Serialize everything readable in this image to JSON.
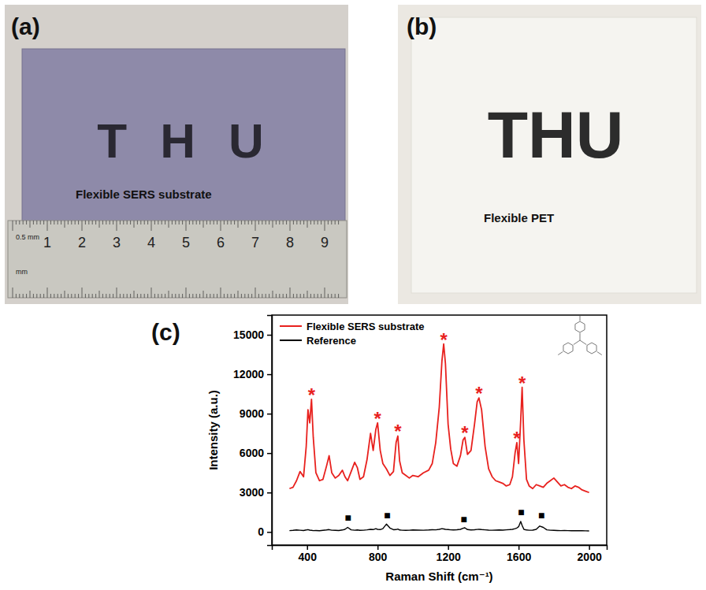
{
  "panels": [
    {
      "label": "(a)",
      "text": "THU",
      "caption": "Flexible SERS substrate",
      "ruler": {
        "numbers": [
          1,
          2,
          3,
          4,
          5,
          6,
          7,
          8,
          9
        ],
        "top_unit": "0.5 mm",
        "bottom_unit": "mm"
      }
    },
    {
      "label": "(b)",
      "text": "THU",
      "caption": "Flexible PET"
    }
  ],
  "chart_data": {
    "type": "line",
    "panel_label": "(c)",
    "x_label": "Raman Shift (cm⁻¹)",
    "y_label": "Intensity (a.u.)",
    "x": [
      300,
      320,
      340,
      360,
      380,
      395,
      405,
      415,
      425,
      435,
      450,
      470,
      490,
      510,
      525,
      540,
      560,
      580,
      600,
      615,
      630,
      650,
      670,
      685,
      700,
      720,
      740,
      760,
      775,
      790,
      800,
      815,
      830,
      850,
      870,
      890,
      905,
      915,
      925,
      940,
      960,
      980,
      1000,
      1030,
      1060,
      1090,
      1110,
      1130,
      1150,
      1165,
      1175,
      1185,
      1200,
      1215,
      1230,
      1250,
      1270,
      1285,
      1295,
      1310,
      1330,
      1350,
      1365,
      1375,
      1390,
      1410,
      1430,
      1450,
      1470,
      1490,
      1510,
      1530,
      1550,
      1565,
      1580,
      1590,
      1600,
      1612,
      1620,
      1630,
      1645,
      1660,
      1680,
      1700,
      1720,
      1740,
      1760,
      1780,
      1800,
      1820,
      1840,
      1860,
      1880,
      1900,
      1920,
      1940,
      1960,
      1980,
      2000
    ],
    "series": [
      {
        "name": "Flexible SERS substrate",
        "color": "#e8211e",
        "values": [
          3300,
          3400,
          3900,
          4600,
          4200,
          6500,
          9300,
          8300,
          10100,
          7200,
          4500,
          3900,
          4000,
          5000,
          5800,
          4500,
          4100,
          4300,
          4700,
          4200,
          3900,
          4600,
          5300,
          4900,
          4000,
          4200,
          5500,
          7500,
          6200,
          7800,
          8300,
          6200,
          5200,
          4800,
          4300,
          4600,
          6800,
          7300,
          5400,
          4500,
          4300,
          4100,
          4300,
          4200,
          4500,
          4700,
          5200,
          6800,
          9500,
          13000,
          14300,
          12800,
          8200,
          6300,
          5200,
          5000,
          5800,
          7000,
          7200,
          5900,
          6200,
          8200,
          9900,
          10200,
          9300,
          6500,
          4800,
          4200,
          3900,
          3800,
          3700,
          3500,
          3600,
          4200,
          6000,
          6800,
          5200,
          8500,
          11000,
          7000,
          4000,
          3500,
          3300,
          3600,
          3500,
          3400,
          3700,
          3900,
          4100,
          3800,
          3500,
          3600,
          3400,
          3300,
          3500,
          3400,
          3200,
          3100,
          3000
        ]
      },
      {
        "name": "Reference",
        "color": "#000000",
        "values": [
          100,
          120,
          150,
          130,
          110,
          150,
          180,
          140,
          120,
          100,
          110,
          90,
          120,
          150,
          180,
          130,
          120,
          110,
          150,
          200,
          350,
          160,
          130,
          150,
          120,
          130,
          160,
          200,
          180,
          250,
          200,
          180,
          250,
          600,
          300,
          170,
          180,
          220,
          150,
          130,
          120,
          130,
          150,
          140,
          130,
          150,
          170,
          160,
          200,
          250,
          230,
          200,
          180,
          160,
          150,
          170,
          200,
          280,
          320,
          180,
          150,
          170,
          190,
          200,
          180,
          160,
          140,
          130,
          140,
          150,
          140,
          160,
          180,
          200,
          250,
          300,
          400,
          800,
          500,
          200,
          150,
          130,
          140,
          200,
          450,
          350,
          160,
          130,
          120,
          110,
          100,
          110,
          100,
          90,
          100,
          95,
          90,
          85,
          80
        ]
      }
    ],
    "xlim": [
      200,
      2100
    ],
    "ylim": [
      -1000,
      16500
    ],
    "xticks": [
      400,
      800,
      1200,
      1600,
      2000
    ],
    "yticks": [
      0,
      3000,
      6000,
      9000,
      12000,
      15000
    ],
    "legend": "upper left",
    "annotations": [
      {
        "text": "*",
        "x": 425,
        "y": 10700,
        "color": "#e8211e"
      },
      {
        "text": "*",
        "x": 800,
        "y": 8900,
        "color": "#e8211e"
      },
      {
        "text": "*",
        "x": 915,
        "y": 7900,
        "color": "#e8211e"
      },
      {
        "text": "*",
        "x": 1175,
        "y": 14900,
        "color": "#e8211e"
      },
      {
        "text": "*",
        "x": 1295,
        "y": 7800,
        "color": "#e8211e"
      },
      {
        "text": "*",
        "x": 1375,
        "y": 10800,
        "color": "#e8211e"
      },
      {
        "text": "*",
        "x": 1590,
        "y": 7400,
        "color": "#e8211e"
      },
      {
        "text": "*",
        "x": 1620,
        "y": 11600,
        "color": "#e8211e"
      },
      {
        "text": "■",
        "x": 632,
        "y": 1100,
        "color": "#000000"
      },
      {
        "text": "■",
        "x": 855,
        "y": 1300,
        "color": "#000000"
      },
      {
        "text": "■",
        "x": 1290,
        "y": 1000,
        "color": "#000000"
      },
      {
        "text": "■",
        "x": 1615,
        "y": 1500,
        "color": "#000000"
      },
      {
        "text": "■",
        "x": 1730,
        "y": 1300,
        "color": "#000000"
      }
    ]
  }
}
